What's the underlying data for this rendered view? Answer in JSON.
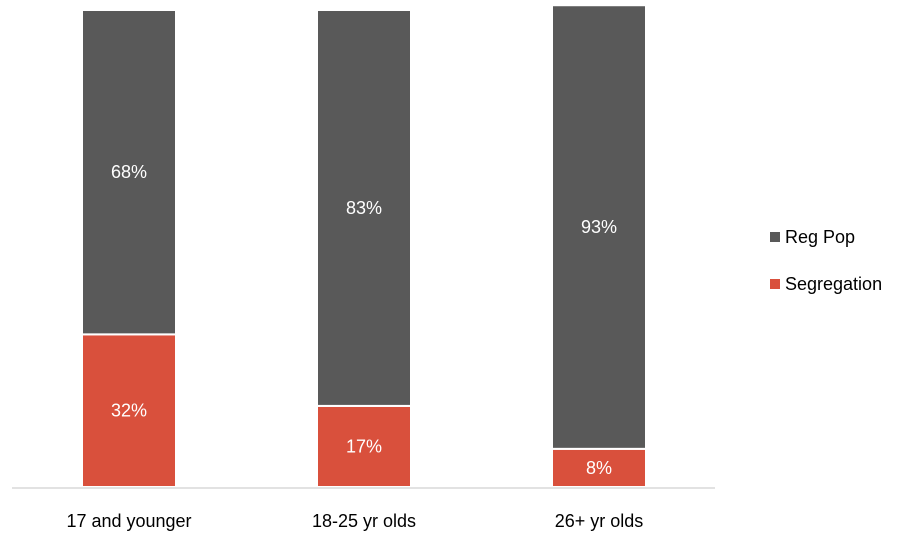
{
  "chart_data": {
    "type": "bar",
    "stacked": true,
    "normalized_percent": true,
    "categories": [
      "17 and younger",
      "18-25 yr olds",
      "26+ yr olds"
    ],
    "series": [
      {
        "name": "Segregation",
        "values": [
          32,
          17,
          8
        ],
        "labels": [
          "32%",
          "17%",
          "8%"
        ],
        "color": "#d9503c"
      },
      {
        "name": "Reg Pop",
        "values": [
          68,
          83,
          93
        ],
        "labels": [
          "68%",
          "83%",
          "93%"
        ],
        "color": "#595959"
      }
    ],
    "title": "",
    "xlabel": "",
    "ylabel": "",
    "ylim": [
      0,
      100
    ],
    "legend": {
      "position": "right",
      "order": [
        "Reg Pop",
        "Segregation"
      ]
    },
    "grid": false
  }
}
